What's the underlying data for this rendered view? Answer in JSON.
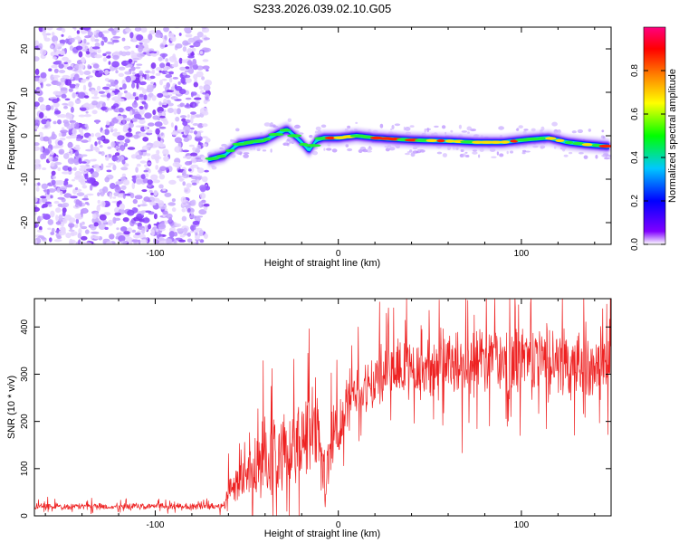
{
  "figure": {
    "title": "S233.2026.039.02.10.G05"
  },
  "chart_data": [
    {
      "type": "heatmap",
      "name": "spectrogram",
      "xlabel": "Height of straight line (km)",
      "ylabel": "Frequency (Hz)",
      "xlim": [
        -166,
        149
      ],
      "ylim": [
        -25,
        25
      ],
      "x_ticks": [
        -100,
        0,
        100
      ],
      "y_ticks": [
        -20,
        -10,
        0,
        10,
        20
      ],
      "x_tick_labels": [
        "-100",
        "0",
        "100"
      ],
      "y_tick_labels": [
        "-20",
        "-10",
        "0",
        "10",
        "20"
      ],
      "noise_region_x": [
        -166,
        -71
      ],
      "ridge": {
        "x": [
          -71,
          -62,
          -55,
          -48,
          -40,
          -33,
          -28,
          -24,
          -20,
          -16,
          -12,
          -8,
          0,
          10,
          20,
          40,
          60,
          75,
          90,
          105,
          115,
          125,
          135,
          149
        ],
        "freq": [
          -5.5,
          -4.5,
          -2,
          -1.5,
          -1,
          0.5,
          1.5,
          0,
          -1.5,
          -3.5,
          -1,
          -0.5,
          -0.5,
          0,
          -0.5,
          -1,
          -1.2,
          -1.5,
          -1.5,
          -0.8,
          -0.5,
          -1.5,
          -2,
          -2.5
        ]
      },
      "colorbar": {
        "label": "Normalized spectral amplitude",
        "range": [
          0,
          1
        ],
        "ticks": [
          0.0,
          0.2,
          0.4,
          0.6,
          0.8
        ],
        "tick_labels": [
          "0.0",
          "0.2",
          "0.4",
          "0.6",
          "0.8"
        ],
        "colors": [
          "#ffffff",
          "#8000ff",
          "#0000ff",
          "#00c8ff",
          "#00ff00",
          "#ffff00",
          "#ff8000",
          "#ff0000",
          "#ff0080"
        ]
      }
    },
    {
      "type": "line",
      "name": "snr",
      "xlabel": "Height of straight line (km)",
      "ylabel": "SNR (10 * v/v)",
      "xlim": [
        -166,
        149
      ],
      "ylim": [
        0,
        460
      ],
      "x_ticks": [
        -100,
        0,
        100
      ],
      "y_ticks": [
        0,
        100,
        200,
        300,
        400
      ],
      "x_tick_labels": [
        "-100",
        "0",
        "100"
      ],
      "y_tick_labels": [
        "0",
        "100",
        "200",
        "300",
        "400"
      ],
      "color": "#ee2222",
      "envelope": {
        "x": [
          -166,
          -63,
          -60,
          -50,
          -43,
          -35,
          -25,
          -18,
          -12,
          -7,
          -4,
          0,
          5,
          10,
          20,
          30,
          50,
          70,
          100,
          130,
          149
        ],
        "base": [
          20,
          20,
          55,
          80,
          115,
          120,
          130,
          185,
          200,
          60,
          155,
          190,
          220,
          255,
          290,
          310,
          320,
          325,
          330,
          325,
          320
        ],
        "noise": [
          8,
          8,
          30,
          60,
          90,
          90,
          100,
          120,
          130,
          40,
          80,
          70,
          60,
          60,
          70,
          70,
          80,
          80,
          90,
          80,
          80
        ]
      }
    }
  ]
}
